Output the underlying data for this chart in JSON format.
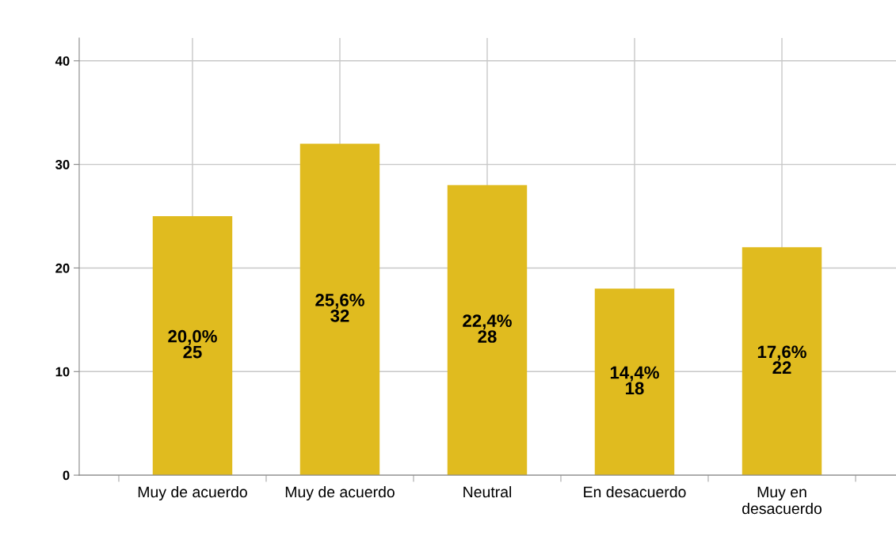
{
  "chart_data": {
    "type": "bar",
    "categories": [
      "Muy de acuerdo",
      "Muy de acuerdo",
      "Neutral",
      "En desacuerdo",
      "Muy en\ndesacuerdo"
    ],
    "values": [
      25,
      32,
      28,
      18,
      22
    ],
    "value_labels": [
      "20,0%\n25",
      "25,6%\n32",
      "22,4%\n28",
      "14,4%\n18",
      "17,6%\n22"
    ],
    "color": "#e0bb1f",
    "ylim": [
      0,
      42.2
    ],
    "yticks": [
      0,
      10,
      20,
      30,
      40
    ],
    "grid": true
  }
}
